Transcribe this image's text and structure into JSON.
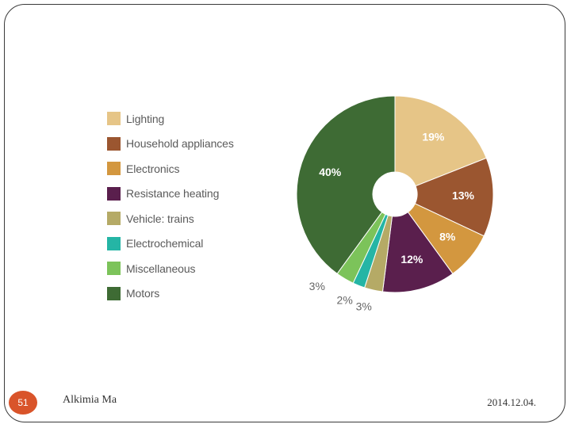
{
  "slide": {
    "page_number": "51",
    "author": "Alkimia Ma",
    "date": "2014.12.04."
  },
  "chart_data": {
    "type": "pie",
    "donut": true,
    "title": "",
    "legend_position": "left",
    "categories": [
      "Lighting",
      "Household appliances",
      "Electronics",
      "Resistance heating",
      "Vehicle: trains",
      "Electrochemical",
      "Miscellaneous",
      "Motors"
    ],
    "values": [
      19,
      13,
      8,
      12,
      3,
      2,
      3,
      40
    ],
    "labels": [
      "19%",
      "13%",
      "8%",
      "12%",
      "3%",
      "2%",
      "3%",
      "40%"
    ],
    "colors": [
      "#e6c587",
      "#9b5630",
      "#d3973f",
      "#5a1f4d",
      "#b5aa66",
      "#25b5a5",
      "#7cc35a",
      "#3e6b34"
    ],
    "label_colors": [
      "#ffffff",
      "#ffffff",
      "#ffffff",
      "#ffffff",
      "#666666",
      "#666666",
      "#666666",
      "#ffffff"
    ]
  }
}
